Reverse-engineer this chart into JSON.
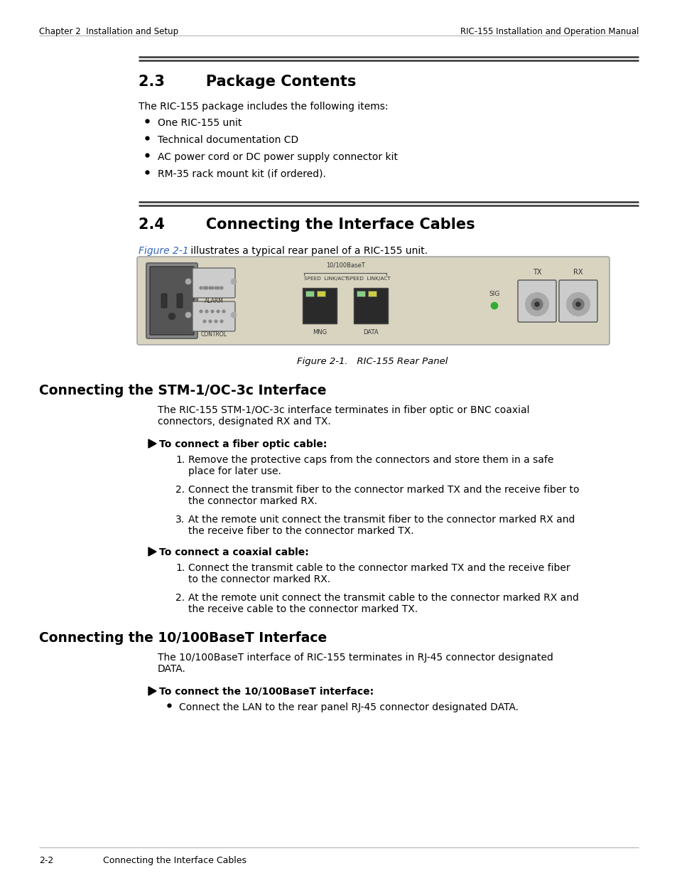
{
  "bg_color": "#ffffff",
  "header_left": "Chapter 2  Installation and Setup",
  "header_right": "RIC-155 Installation and Operation Manual",
  "footer_left": "2-2",
  "footer_right": "Connecting the Interface Cables",
  "section_23_title": "2.3        Package Contents",
  "section_23_intro": "The RIC-155 package includes the following items:",
  "section_23_bullets": [
    "One RIC-155 unit",
    "Technical documentation CD",
    "AC power cord or DC power supply connector kit",
    "RM-35 rack mount kit (if ordered)."
  ],
  "section_24_title": "2.4        Connecting the Interface Cables",
  "section_24_intro_italic": "Figure 2-1",
  "section_24_intro_rest": " illustrates a typical rear panel of a RIC-155 unit.",
  "figure_caption": "Figure 2-1.   RIC-155 Rear Panel",
  "section_stm_title": "Connecting the STM-1/OC-3c Interface",
  "section_stm_intro": "The RIC-155 STM-1/OC-3c interface terminates in fiber optic or BNC coaxial\nconnectors, designated RX and TX.",
  "arrow_label_fiber": "To connect a fiber optic cable:",
  "fiber_steps": [
    "Remove the protective caps from the connectors and store them in a safe\nplace for later use.",
    "Connect the transmit fiber to the connector marked TX and the receive fiber to\nthe connector marked RX.",
    "At the remote unit connect the transmit fiber to the connector marked RX and\nthe receive fiber to the connector marked TX."
  ],
  "arrow_label_coax": "To connect a coaxial cable:",
  "coax_steps": [
    "Connect the transmit cable to the connector marked TX and the receive fiber\nto the connector marked RX.",
    "At the remote unit connect the transmit cable to the connector marked RX and\nthe receive cable to the connector marked TX."
  ],
  "section_10100_title": "Connecting the 10/100BaseT Interface",
  "section_10100_intro": "The 10/100BaseT interface of RIC-155 terminates in RJ-45 connector designated\nDATA.",
  "arrow_label_10100": "To connect the 10/100BaseT interface:",
  "bullets_10100": [
    "Connect the LAN to the rear panel RJ-45 connector designated DATA."
  ],
  "double_line_color": "#333333",
  "text_color": "#000000",
  "section_title_color": "#000000",
  "header_color": "#000000",
  "italic_color": "#3366bb",
  "panel_bg": "#d8d4c0",
  "panel_border": "#aaaaaa",
  "panel_dark": "#555555",
  "panel_mid": "#888888",
  "panel_light": "#cccccc"
}
